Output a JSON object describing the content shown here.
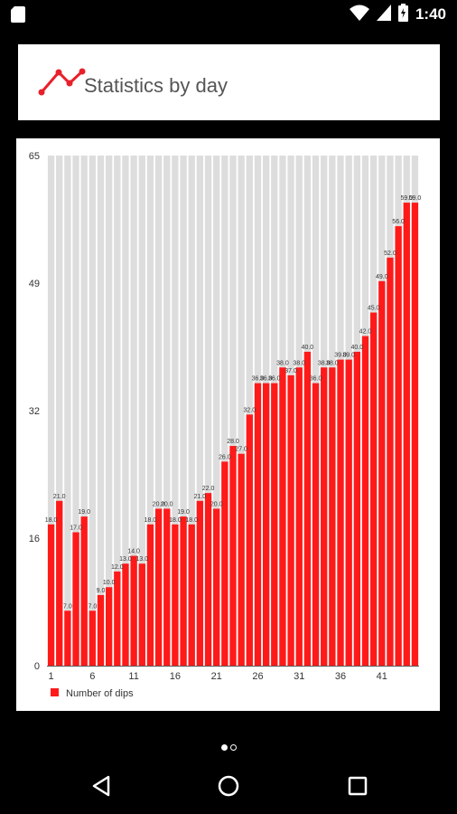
{
  "status_bar": {
    "time": "1:40",
    "left_icon": "sd-card-icon",
    "icons": [
      "wifi-icon",
      "signal-icon",
      "battery-charging-icon"
    ]
  },
  "header": {
    "icon": "line-chart-icon",
    "title": "Statistics by day"
  },
  "chart_data": {
    "type": "bar",
    "x": [
      1,
      2,
      3,
      4,
      5,
      6,
      7,
      8,
      9,
      10,
      11,
      12,
      13,
      14,
      15,
      16,
      17,
      18,
      19,
      20,
      21,
      22,
      23,
      24,
      25,
      26,
      27,
      28,
      29,
      30,
      31,
      32,
      33,
      34,
      35,
      36,
      37,
      38,
      39,
      40,
      41,
      42,
      43,
      44,
      45
    ],
    "x_tick_labels": [
      "1",
      "6",
      "11",
      "16",
      "21",
      "26",
      "31",
      "36",
      "41"
    ],
    "series": [
      {
        "name": "Number of dips",
        "color": "#ff1a1a",
        "values": [
          18,
          21,
          7,
          17,
          19,
          7,
          9,
          10,
          12,
          13,
          14,
          13,
          18,
          20,
          20,
          18,
          19,
          18,
          21,
          22,
          20,
          26,
          28,
          27,
          32,
          36,
          36,
          36,
          38,
          37,
          38,
          40,
          36,
          38,
          38,
          39,
          39,
          40,
          42,
          45,
          49,
          52,
          56,
          59,
          59
        ],
        "labels": [
          "18.0",
          "21.0",
          "7.0",
          "17.0",
          "19.0",
          "7.0",
          "9.0",
          "10.0",
          "12.0",
          "13.0",
          "14.0",
          "13.0",
          "18.0",
          "20.0",
          "20.0",
          "18.0",
          "19.0",
          "18.0",
          "21.0",
          "22.0",
          "20.0",
          "26.0",
          "28.0",
          "27.0",
          "32.0",
          "36.0",
          "36.0",
          "36.0",
          "38.0",
          "37.0",
          "38.0",
          "40.0",
          "36.0",
          "38.0",
          "38.0",
          "39.0",
          "39.0",
          "40.0",
          "42.0",
          "45.0",
          "49.0",
          "52.0",
          "56.0",
          "59.0",
          "59.0"
        ]
      }
    ],
    "y_tick_labels": [
      "0",
      "16",
      "32",
      "49",
      "65"
    ],
    "ylim": [
      0,
      65
    ],
    "background_bar_color": "#dddddd",
    "legend": {
      "position": "bottom-left",
      "label": "Number of dips"
    }
  },
  "page_indicator": {
    "pages": 2,
    "active": 0
  },
  "nav_bar": {
    "back": "back-icon",
    "home": "home-icon",
    "recents": "recents-icon"
  }
}
